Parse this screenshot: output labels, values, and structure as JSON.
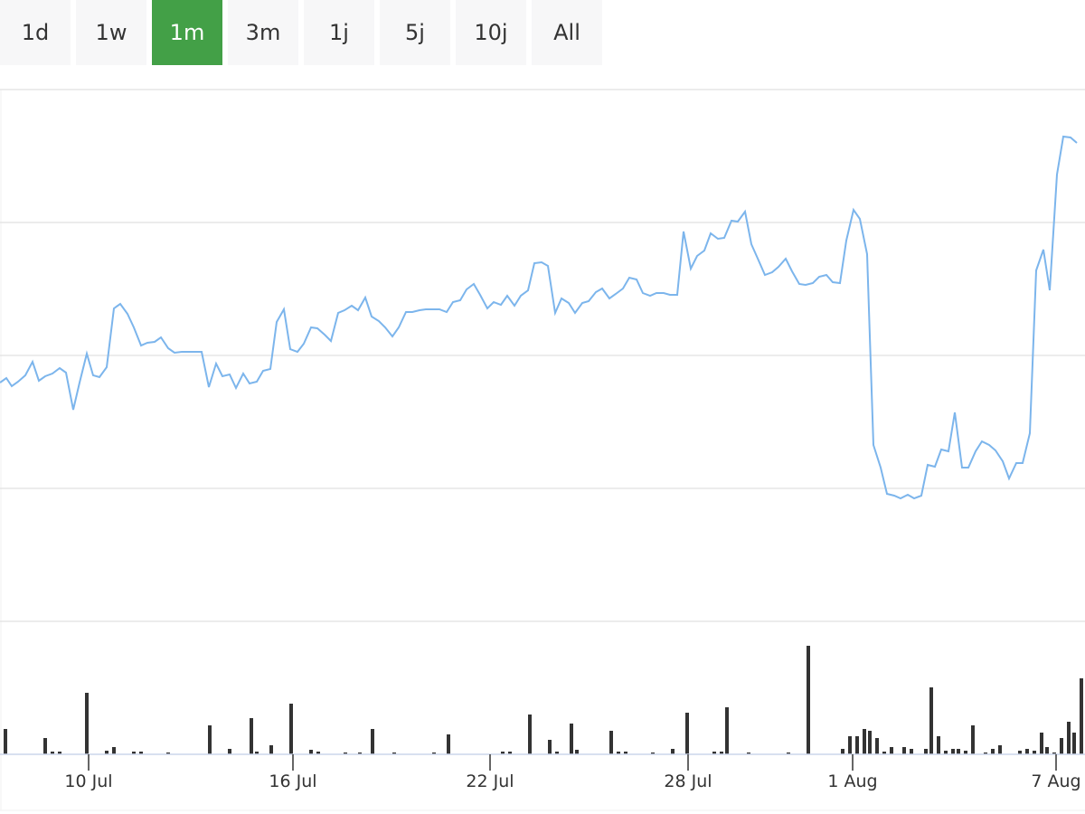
{
  "range_buttons": {
    "labels": [
      "1d",
      "1w",
      "1m",
      "3m",
      "1j",
      "5j",
      "10j",
      "All"
    ],
    "active": 2,
    "color": "#f7f7f8",
    "active_color": "#43a047"
  },
  "chart_data": [
    {
      "type": "line",
      "color": "#7cb5ec",
      "grid": true,
      "xlim": [
        0,
        1200
      ],
      "ylim": [
        0,
        588
      ],
      "yticks": [
        0,
        147,
        294,
        441,
        588
      ],
      "x": [
        0,
        7,
        13,
        20,
        28,
        36,
        43,
        50,
        58,
        66,
        73,
        81,
        88,
        96,
        103,
        110,
        118,
        126,
        133,
        141,
        148,
        156,
        163,
        171,
        178,
        186,
        193,
        201,
        223,
        231,
        239,
        246,
        254,
        261,
        269,
        276,
        284,
        291,
        299,
        306,
        314,
        321,
        329,
        336,
        344,
        351,
        359,
        366,
        374,
        381,
        389,
        396,
        404,
        411,
        419,
        426,
        434,
        441,
        449,
        456,
        464,
        471,
        486,
        494,
        501,
        509,
        516,
        524,
        531,
        539,
        546,
        554,
        561,
        569,
        576,
        584,
        591,
        599,
        606,
        614,
        621,
        629,
        636,
        644,
        651,
        659,
        666,
        674,
        681,
        689,
        696,
        704,
        711,
        719,
        726,
        734,
        741,
        749,
        756,
        764,
        771,
        779,
        786,
        794,
        801,
        809,
        816,
        824,
        831,
        839,
        846,
        854,
        861,
        869,
        876,
        884,
        891,
        899,
        906,
        914,
        921,
        929,
        936,
        944,
        951,
        959,
        966,
        974,
        981,
        989,
        996,
        1004,
        1011,
        1019,
        1026,
        1034,
        1041,
        1049,
        1056,
        1064,
        1071,
        1079,
        1086,
        1094,
        1101,
        1109,
        1116,
        1124,
        1131,
        1139,
        1146,
        1154,
        1161,
        1169,
        1176,
        1184,
        1191
      ],
      "values": [
        264,
        269,
        260,
        265,
        272,
        287,
        266,
        271,
        274,
        280,
        275,
        234,
        264,
        296,
        272,
        270,
        281,
        346,
        351,
        340,
        325,
        305,
        308,
        309,
        314,
        302,
        297,
        298,
        298,
        259,
        285,
        271,
        273,
        258,
        274,
        263,
        265,
        277,
        279,
        331,
        345,
        301,
        298,
        307,
        325,
        324,
        317,
        310,
        341,
        344,
        349,
        344,
        358,
        337,
        332,
        325,
        315,
        325,
        342,
        342,
        344,
        345,
        345,
        342,
        353,
        355,
        367,
        373,
        361,
        346,
        353,
        350,
        360,
        349,
        360,
        366,
        396,
        397,
        393,
        341,
        357,
        352,
        341,
        352,
        354,
        364,
        368,
        357,
        362,
        368,
        380,
        378,
        363,
        360,
        363,
        363,
        361,
        361,
        431,
        390,
        404,
        410,
        429,
        423,
        424,
        443,
        442,
        453,
        417,
        399,
        383,
        386,
        392,
        401,
        387,
        373,
        372,
        374,
        381,
        383,
        375,
        374,
        421,
        455,
        445,
        406,
        195,
        170,
        141,
        139,
        136,
        140,
        136,
        139,
        173,
        171,
        190,
        188,
        231,
        170,
        170,
        188,
        199,
        195,
        189,
        177,
        158,
        175,
        175,
        208,
        388,
        411,
        366,
        494,
        536,
        535,
        529
      ]
    },
    {
      "type": "bar",
      "color": "#333333",
      "xlim": [
        0,
        1200
      ],
      "ylim": [
        0,
        147
      ],
      "xticks": [
        {
          "value": 98,
          "label": "10 Jul"
        },
        {
          "value": 324,
          "label": "16 Jul"
        },
        {
          "value": 542,
          "label": "22 Jul"
        },
        {
          "value": 761,
          "label": "28 Jul"
        },
        {
          "value": 943,
          "label": "1 Aug"
        },
        {
          "value": 1168,
          "label": "7 Aug"
        }
      ],
      "x": [
        6,
        50,
        58,
        66,
        96,
        118,
        126,
        148,
        156,
        186,
        232,
        254,
        278,
        284,
        300,
        322,
        344,
        352,
        382,
        398,
        412,
        436,
        480,
        496,
        556,
        564,
        586,
        608,
        616,
        632,
        638,
        676,
        684,
        692,
        722,
        744,
        760,
        790,
        798,
        804,
        828,
        872,
        894,
        932,
        940,
        948,
        956,
        962,
        970,
        978,
        986,
        1000,
        1008,
        1024,
        1030,
        1038,
        1046,
        1054,
        1060,
        1068,
        1076,
        1090,
        1098,
        1106,
        1128,
        1136,
        1144,
        1152,
        1158,
        1166,
        1174,
        1182,
        1188,
        1196
      ],
      "values": [
        28,
        18,
        3,
        3,
        68,
        4,
        8,
        3,
        3,
        2,
        32,
        6,
        40,
        3,
        10,
        56,
        5,
        3,
        2,
        2,
        28,
        2,
        2,
        22,
        3,
        3,
        44,
        16,
        3,
        34,
        5,
        26,
        3,
        3,
        2,
        6,
        46,
        3,
        3,
        52,
        2,
        2,
        120,
        6,
        20,
        20,
        28,
        26,
        18,
        3,
        8,
        8,
        6,
        6,
        74,
        20,
        4,
        6,
        6,
        4,
        32,
        2,
        6,
        10,
        4,
        6,
        4,
        24,
        8,
        2,
        18,
        36,
        24,
        84
      ]
    }
  ]
}
